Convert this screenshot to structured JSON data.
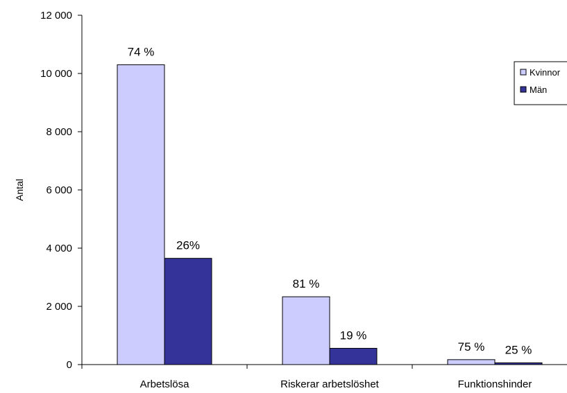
{
  "chart_data": {
    "type": "bar",
    "title": "",
    "xlabel": "",
    "ylabel": "Antal",
    "ylim": [
      0,
      12000
    ],
    "yticks": [
      0,
      2000,
      4000,
      6000,
      8000,
      10000,
      12000
    ],
    "ytick_labels": [
      "0",
      "2 000",
      "4 000",
      "6 000",
      "8 000",
      "10 000",
      "12 000"
    ],
    "categories": [
      "Arbetslösa",
      "Riskerar arbetslöshet",
      "Funktionshinder"
    ],
    "series": [
      {
        "name": "Kvinnor",
        "color": "#CCCCFF",
        "values": [
          10300,
          2330,
          170
        ],
        "labels": [
          "74 %",
          "81 %",
          "75 %"
        ]
      },
      {
        "name": "Män",
        "color": "#333399",
        "values": [
          3650,
          560,
          60
        ],
        "labels": [
          "26%",
          "19 %",
          "25 %"
        ]
      }
    ],
    "legend": {
      "position": "right",
      "entries": [
        "Kvinnor",
        "Män"
      ]
    },
    "grid": false
  }
}
